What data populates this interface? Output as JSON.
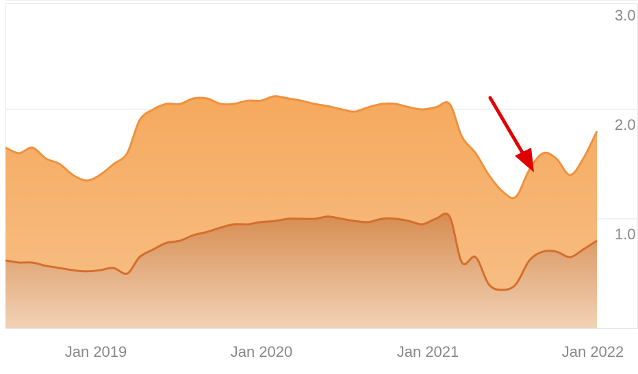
{
  "chart_data": {
    "type": "area",
    "x_ticks": [
      "Jan 2019",
      "Jan 2020",
      "Jan 2021",
      "Jan 2022"
    ],
    "y_ticks": [
      "1.0",
      "2.0",
      "3.0"
    ],
    "ylim": [
      0,
      3
    ],
    "y_axis_side": "right",
    "grid": "horizontal",
    "legend": "none",
    "annotation": "red arrow pointing to dip in upper series",
    "colors": {
      "upper_line": "#f0913d",
      "upper_fill": "#f7b46e",
      "lower_line": "#d46e2c",
      "lower_fill": "#d9935c",
      "axis_text": "#888888",
      "grid": "#e3e3e3",
      "arrow": "#e00000"
    },
    "series": [
      {
        "x": [
          "2018-05",
          "2018-06",
          "2018-07",
          "2018-08",
          "2018-09",
          "2018-10",
          "2018-11",
          "2018-12",
          "2019-01",
          "2019-02",
          "2019-03",
          "2019-04",
          "2019-05",
          "2019-06",
          "2019-07",
          "2019-08",
          "2019-09",
          "2019-10",
          "2019-11",
          "2019-12",
          "2020-01",
          "2020-02",
          "2020-03",
          "2020-04",
          "2020-05",
          "2020-06",
          "2020-07",
          "2020-08",
          "2020-09",
          "2020-10",
          "2020-11",
          "2020-12",
          "2021-01",
          "2021-02",
          "2021-03",
          "2021-04",
          "2021-05",
          "2021-06",
          "2021-07",
          "2021-08",
          "2021-09",
          "2021-10",
          "2021-11",
          "2021-12",
          "2022-01"
        ],
        "y": [
          1.65,
          1.6,
          1.65,
          1.55,
          1.5,
          1.4,
          1.35,
          1.4,
          1.5,
          1.6,
          1.9,
          2.0,
          2.05,
          2.05,
          2.1,
          2.1,
          2.05,
          2.05,
          2.08,
          2.08,
          2.12,
          2.1,
          2.08,
          2.05,
          2.03,
          2.0,
          1.98,
          2.02,
          2.05,
          2.05,
          2.02,
          2.0,
          2.02,
          2.05,
          1.75,
          1.6,
          1.4,
          1.25,
          1.2,
          1.45,
          1.6,
          1.55,
          1.4,
          1.55,
          1.8
        ]
      },
      {
        "x": [
          "2018-05",
          "2018-06",
          "2018-07",
          "2018-08",
          "2018-09",
          "2018-10",
          "2018-11",
          "2018-12",
          "2019-01",
          "2019-02",
          "2019-03",
          "2019-04",
          "2019-05",
          "2019-06",
          "2019-07",
          "2019-08",
          "2019-09",
          "2019-10",
          "2019-11",
          "2019-12",
          "2020-01",
          "2020-02",
          "2020-03",
          "2020-04",
          "2020-05",
          "2020-06",
          "2020-07",
          "2020-08",
          "2020-09",
          "2020-10",
          "2020-11",
          "2020-12",
          "2021-01",
          "2021-02",
          "2021-03",
          "2021-04",
          "2021-05",
          "2021-06",
          "2021-07",
          "2021-08",
          "2021-09",
          "2021-10",
          "2021-11",
          "2021-12",
          "2022-01"
        ],
        "y": [
          0.62,
          0.6,
          0.6,
          0.57,
          0.55,
          0.53,
          0.52,
          0.53,
          0.55,
          0.5,
          0.65,
          0.72,
          0.78,
          0.8,
          0.85,
          0.88,
          0.92,
          0.95,
          0.95,
          0.97,
          0.98,
          1.0,
          1.0,
          1.0,
          1.02,
          1.0,
          0.98,
          0.97,
          1.0,
          1.0,
          0.98,
          0.95,
          1.0,
          1.02,
          0.6,
          0.65,
          0.4,
          0.35,
          0.4,
          0.62,
          0.7,
          0.7,
          0.65,
          0.72,
          0.8
        ]
      }
    ]
  }
}
